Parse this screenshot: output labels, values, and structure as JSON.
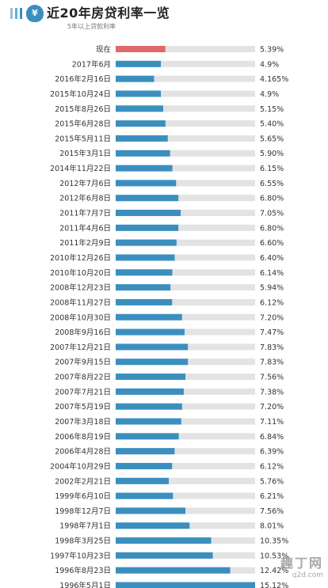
{
  "header": {
    "title": "近20年房贷利率一览",
    "subtitle": "5年以上贷款利率"
  },
  "colors": {
    "bar": "#3b8fbf",
    "highlight_bar": "#e06a6a",
    "track": "#e3e3e3",
    "accent": "#3a8fc0"
  },
  "logo_icon": "money-bag-icon",
  "watermark": {
    "main": "趣丁网",
    "url": "q2d.com"
  },
  "chart_data": {
    "type": "bar",
    "orientation": "horizontal",
    "title": "近20年房贷利率一览",
    "subtitle": "5年以上贷款利率",
    "xlim": [
      0,
      15.12
    ],
    "highlight_category": "现在",
    "categories": [
      "现在",
      "2017年6月",
      "2016年2月16日",
      "2015年10月24日",
      "2015年8月26日",
      "2015年6月28日",
      "2015年5月11日",
      "2015年3月1日",
      "2014年11月22日",
      "2012年7月6日",
      "2012年6月8日",
      "2011年7月7日",
      "2011年4月6日",
      "2011年2月9日",
      "2010年12月26日",
      "2010年10月20日",
      "2008年12月23日",
      "2008年11月27日",
      "2008年10月30日",
      "2008年9月16日",
      "2007年12月21日",
      "2007年9月15日",
      "2007年8月22日",
      "2007年7月21日",
      "2007年5月19日",
      "2007年3月18日",
      "2006年8月19日",
      "2006年4月28日",
      "2004年10月29日",
      "2002年2月21日",
      "1999年6月10日",
      "1998年12月7日",
      "1998年7月1日",
      "1998年3月25日",
      "1997年10月23日",
      "1996年8月23日",
      "1996年5月1日"
    ],
    "values": [
      5.39,
      4.9,
      4.165,
      4.9,
      5.15,
      5.4,
      5.65,
      5.9,
      6.15,
      6.55,
      6.8,
      7.05,
      6.8,
      6.6,
      6.4,
      6.14,
      5.94,
      6.12,
      7.2,
      7.47,
      7.83,
      7.83,
      7.56,
      7.38,
      7.2,
      7.11,
      6.84,
      6.39,
      6.12,
      5.76,
      6.21,
      7.56,
      8.01,
      10.35,
      10.53,
      12.42,
      15.12
    ],
    "value_labels": [
      "5.39%",
      "4.9%",
      "4.165%",
      "4.9%",
      "5.15%",
      "5.40%",
      "5.65%",
      "5.90%",
      "6.15%",
      "6.55%",
      "6.80%",
      "7.05%",
      "6.80%",
      "6.60%",
      "6.40%",
      "6.14%",
      "5.94%",
      "6.12%",
      "7.20%",
      "7.47%",
      "7.83%",
      "7.83%",
      "7.56%",
      "7.38%",
      "7.20%",
      "7.11%",
      "6.84%",
      "6.39%",
      "6.12%",
      "5.76%",
      "6.21%",
      "7.56%",
      "8.01%",
      "10.35%",
      "10.53%",
      "12.42%",
      "15.12%"
    ]
  }
}
